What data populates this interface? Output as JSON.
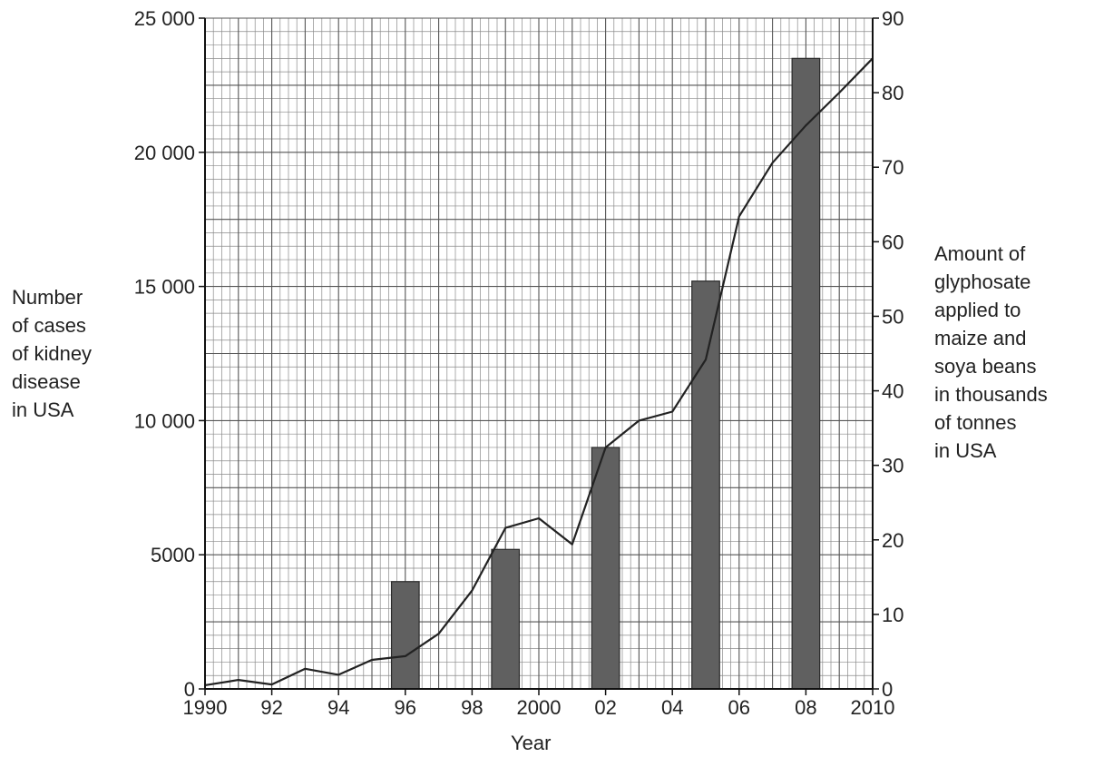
{
  "chart_data": {
    "type": "bar+line",
    "xlabel": "Year",
    "x_ticks": [
      "1990",
      "92",
      "94",
      "96",
      "98",
      "2000",
      "02",
      "04",
      "06",
      "08",
      "2010"
    ],
    "x_tick_values": [
      1990,
      1992,
      1994,
      1996,
      1998,
      2000,
      2002,
      2004,
      2006,
      2008,
      2010
    ],
    "xlim": [
      1990,
      2010
    ],
    "left_axis": {
      "label": "Number\nof cases\nof kidney\ndisease\nin USA",
      "ticks": [
        "0",
        "5000",
        "10 000",
        "15 000",
        "20 000",
        "25 000"
      ],
      "tick_values": [
        0,
        5000,
        10000,
        15000,
        20000,
        25000
      ],
      "ylim": [
        0,
        25000
      ]
    },
    "right_axis": {
      "label": "Amount of\nglyphosate\napplied to\nmaize and\nsoya beans\nin thousands\nof tonnes\nin USA",
      "ticks": [
        "0",
        "10",
        "20",
        "30",
        "40",
        "50",
        "60",
        "70",
        "80",
        "90"
      ],
      "tick_values": [
        0,
        10,
        20,
        30,
        40,
        50,
        60,
        70,
        80,
        90
      ],
      "ylim": [
        0,
        90
      ]
    },
    "bars": {
      "axis": "left",
      "x": [
        1996,
        1999,
        2002,
        2005,
        2008
      ],
      "values": [
        4000,
        5200,
        9000,
        15200,
        23500
      ],
      "color": "#606060"
    },
    "line": {
      "axis": "right",
      "x": [
        1990,
        1991,
        1992,
        1993,
        1994,
        1995,
        1996,
        1997,
        1998,
        1999,
        2000,
        2001,
        2002,
        2003,
        2004,
        2005,
        2006,
        2007,
        2008,
        2009,
        2010
      ],
      "values": [
        0.5,
        1.2,
        0.6,
        2.7,
        1.9,
        3.9,
        4.4,
        7.4,
        13.2,
        21.6,
        22.9,
        19.4,
        32.4,
        36.0,
        37.2,
        44.2,
        63.4,
        70.6,
        75.6,
        80.0,
        84.6
      ],
      "color": "#222222"
    },
    "grid": true
  }
}
